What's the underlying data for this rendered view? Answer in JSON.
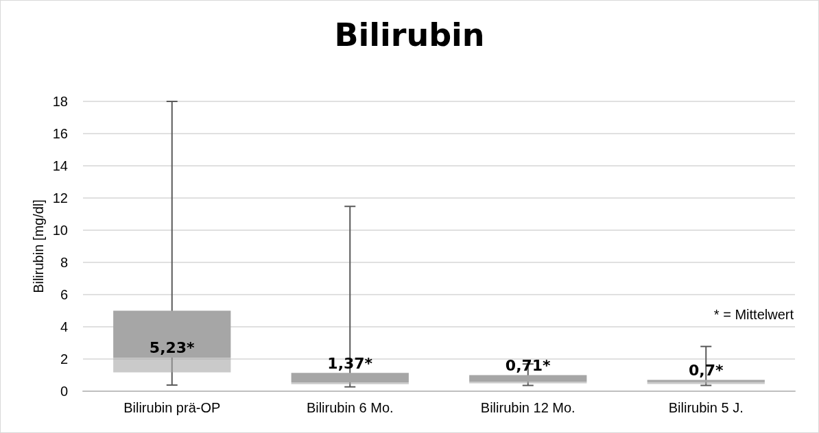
{
  "chart_data": {
    "type": "box",
    "title": "Bilirubin",
    "ylabel": "Bilirubin [mg/dl]",
    "categories": [
      "Bilirubin prä-OP",
      "Bilirubin 6 Mo.",
      "Bilirubin 12 Mo.",
      "Bilirubin 5 J."
    ],
    "boxes": [
      {
        "low": 0.38,
        "q1": 1.17,
        "median": 2.08,
        "q3": 5.0,
        "high": 18.0
      },
      {
        "low": 0.27,
        "q1": 0.44,
        "median": 0.55,
        "q3": 1.14,
        "high": 11.48
      },
      {
        "low": 0.36,
        "q1": 0.49,
        "median": 0.58,
        "q3": 1.0,
        "high": 1.69
      },
      {
        "low": 0.36,
        "q1": 0.45,
        "median": 0.56,
        "q3": 0.7,
        "high": 2.78
      }
    ],
    "color": "#a6a6a6",
    "value_labels": [
      "5,23*",
      "1,37*",
      "0,71*",
      "0,7*"
    ],
    "annotations": [
      "* = Mittelwert"
    ],
    "ylim": [
      0,
      18
    ],
    "yticks": [
      0,
      2,
      4,
      6,
      8,
      10,
      12,
      14,
      16,
      18
    ],
    "grid": "y"
  }
}
